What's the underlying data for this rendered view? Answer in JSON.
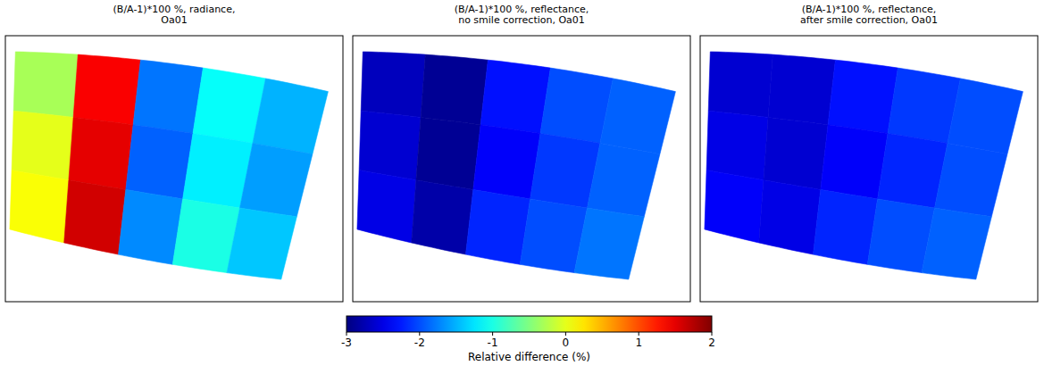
{
  "chart_data": [
    {
      "type": "heatmap",
      "title": "(B/A-1)*100 %, radiance, Oa01",
      "tick_labels": false,
      "values": [
        [
          -0.3,
          1.4,
          -1.8,
          -1.1,
          -1.5
        ],
        [
          0.0,
          1.5,
          -1.9,
          -1.2,
          -1.6
        ],
        [
          0.1,
          1.6,
          -1.7,
          -1.0,
          -1.4
        ]
      ]
    },
    {
      "type": "heatmap",
      "title": "(B/A-1)*100 %, reflectance, no smile correction, Oa01",
      "tick_labels": false,
      "values": [
        [
          -2.7,
          -2.9,
          -2.3,
          -2.0,
          -1.9
        ],
        [
          -2.6,
          -2.9,
          -2.4,
          -2.1,
          -1.9
        ],
        [
          -2.5,
          -2.8,
          -2.2,
          -2.0,
          -1.8
        ]
      ]
    },
    {
      "type": "heatmap",
      "title": "(B/A-1)*100 %, reflectance, after smile correction, Oa01",
      "tick_labels": false,
      "values": [
        [
          -2.6,
          -2.6,
          -2.3,
          -2.1,
          -2.0
        ],
        [
          -2.5,
          -2.6,
          -2.4,
          -2.2,
          -2.0
        ],
        [
          -2.4,
          -2.5,
          -2.2,
          -2.0,
          -1.9
        ]
      ]
    }
  ],
  "colorbar": {
    "range": [
      -3,
      2
    ],
    "ticks": [
      -3,
      -2,
      -1,
      0,
      1,
      2
    ],
    "label": "Relative difference (%)"
  }
}
